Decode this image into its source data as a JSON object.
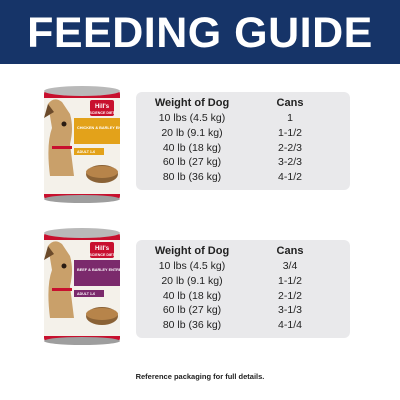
{
  "header": {
    "title": "FEEDING GUIDE"
  },
  "products": [
    {
      "brand": "Hill's",
      "line": "SCIENCE DIET",
      "flavor": "CHICKEN & BARLEY ENTRÉE",
      "age": "ADULT 1-6",
      "table": {
        "columns": [
          "Weight of Dog",
          "Cans"
        ],
        "rows": [
          [
            "10 lbs (4.5 kg)",
            "1"
          ],
          [
            "20 lb (9.1 kg)",
            "1-1/2"
          ],
          [
            "40 lb (18 kg)",
            "2-2/3"
          ],
          [
            "60 lb (27 kg)",
            "3-2/3"
          ],
          [
            "80 lb (36 kg)",
            "4-1/2"
          ]
        ]
      }
    },
    {
      "brand": "Hill's",
      "line": "SCIENCE DIET",
      "flavor": "BEEF & BARLEY ENTRÉE",
      "age": "ADULT 1-6",
      "table": {
        "columns": [
          "Weight of Dog",
          "Cans"
        ],
        "rows": [
          [
            "10 lbs (4.5 kg)",
            "3/4"
          ],
          [
            "20 lb (9.1 kg)",
            "1-1/2"
          ],
          [
            "40 lb (18 kg)",
            "2-1/2"
          ],
          [
            "60 lb (27 kg)",
            "3-1/3"
          ],
          [
            "80 lb (36 kg)",
            "4-1/4"
          ]
        ]
      }
    }
  ],
  "footer": "Reference packaging for full details."
}
